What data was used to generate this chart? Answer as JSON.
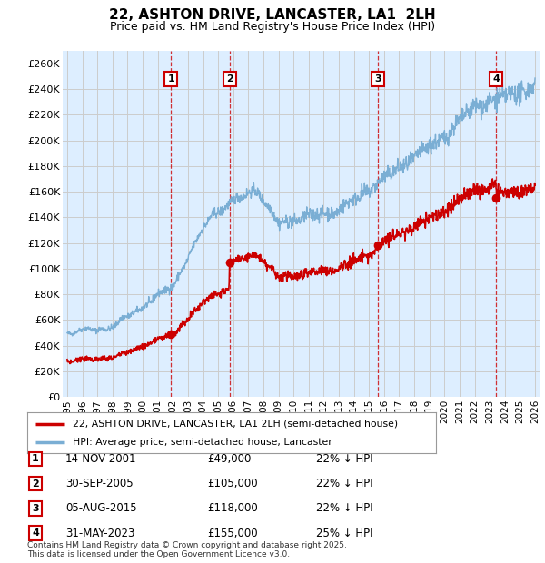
{
  "title": "22, ASHTON DRIVE, LANCASTER, LA1  2LH",
  "subtitle": "Price paid vs. HM Land Registry's House Price Index (HPI)",
  "ylabel_ticks": [
    "£0",
    "£20K",
    "£40K",
    "£60K",
    "£80K",
    "£100K",
    "£120K",
    "£140K",
    "£160K",
    "£180K",
    "£200K",
    "£220K",
    "£240K",
    "£260K"
  ],
  "ytick_values": [
    0,
    20000,
    40000,
    60000,
    80000,
    100000,
    120000,
    140000,
    160000,
    180000,
    200000,
    220000,
    240000,
    260000
  ],
  "ylim": [
    0,
    270000
  ],
  "xlim_start": 1994.7,
  "xlim_end": 2026.3,
  "xtick_years": [
    1995,
    1996,
    1997,
    1998,
    1999,
    2000,
    2001,
    2002,
    2003,
    2004,
    2005,
    2006,
    2007,
    2008,
    2009,
    2010,
    2011,
    2012,
    2013,
    2014,
    2015,
    2016,
    2017,
    2018,
    2019,
    2020,
    2021,
    2022,
    2023,
    2024,
    2025,
    2026
  ],
  "sale_dates": [
    2001.87,
    2005.75,
    2015.59,
    2023.42
  ],
  "sale_prices": [
    49000,
    105000,
    118000,
    155000
  ],
  "sale_labels": [
    "1",
    "2",
    "3",
    "4"
  ],
  "transaction_notes": [
    {
      "label": "1",
      "date": "14-NOV-2001",
      "price": "£49,000",
      "note": "22% ↓ HPI"
    },
    {
      "label": "2",
      "date": "30-SEP-2005",
      "price": "£105,000",
      "note": "22% ↓ HPI"
    },
    {
      "label": "3",
      "date": "05-AUG-2015",
      "price": "£118,000",
      "note": "22% ↓ HPI"
    },
    {
      "label": "4",
      "date": "31-MAY-2023",
      "price": "£155,000",
      "note": "25% ↓ HPI"
    }
  ],
  "line_color_red": "#cc0000",
  "line_color_blue": "#7aaed4",
  "shading_color": "#ddeeff",
  "grid_color": "#cccccc",
  "background_color": "#ffffff",
  "legend_label_red": "22, ASHTON DRIVE, LANCASTER, LA1 2LH (semi-detached house)",
  "legend_label_blue": "HPI: Average price, semi-detached house, Lancaster",
  "footer": "Contains HM Land Registry data © Crown copyright and database right 2025.\nThis data is licensed under the Open Government Licence v3.0."
}
